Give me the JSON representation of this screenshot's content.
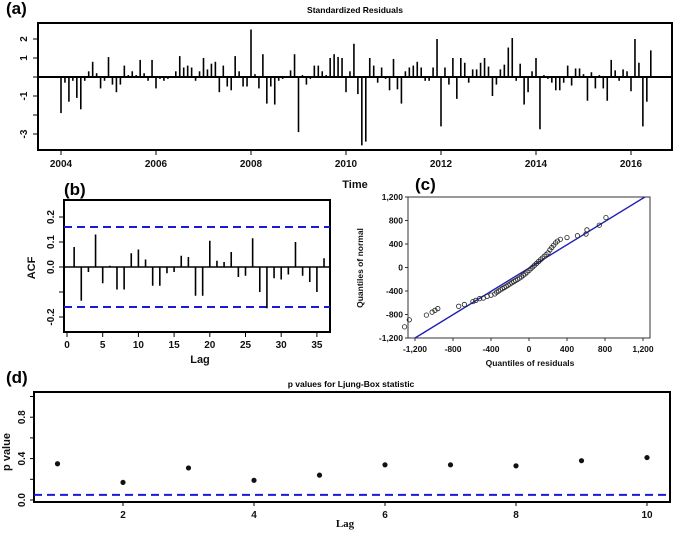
{
  "chart_data": [
    {
      "panel": "(a)",
      "type": "bar",
      "title": "Standardized Residuals",
      "xlabel": "Time",
      "ylabel": "",
      "xlim": [
        2003.5,
        2016.85
      ],
      "ylim": [
        -3.85,
        2.85
      ],
      "x_ticks": [
        "2004",
        "2006",
        "2008",
        "2010",
        "2012",
        "2014",
        "2016"
      ],
      "y_ticks": [
        "2",
        "1",
        "-1",
        "-3"
      ],
      "start": 2004.0,
      "frequency": 12,
      "values": [
        -1.9,
        -0.3,
        -1.3,
        -0.2,
        -1.1,
        -1.7,
        -0.2,
        0.3,
        0.8,
        0.2,
        -0.6,
        -0.2,
        1.05,
        -0.4,
        -0.8,
        -0.4,
        0.6,
        0.1,
        0.3,
        0.1,
        0.9,
        0.2,
        -0.2,
        0.9,
        -0.6,
        -0.1,
        -0.2,
        -0.1,
        0.05,
        0.3,
        1.1,
        0.5,
        0.6,
        0.5,
        -0.2,
        0.3,
        1.0,
        0.4,
        0.7,
        0.8,
        -0.8,
        0.6,
        -0.5,
        -0.7,
        1.1,
        0.3,
        -0.5,
        -0.5,
        2.5,
        0.15,
        -0.6,
        1.2,
        -1.4,
        -0.5,
        -1.45,
        -0.2,
        -0.1,
        0.05,
        0.35,
        1.2,
        -2.9,
        0.1,
        -0.4,
        -0.1,
        0.6,
        0.6,
        0.3,
        0.1,
        1.0,
        1.2,
        1.05,
        1.0,
        -0.8,
        0.3,
        1.75,
        -0.9,
        -3.6,
        -3.4,
        1.0,
        0.6,
        -0.3,
        0.5,
        -0.1,
        -0.7,
        0.95,
        -0.65,
        -1.4,
        0.3,
        0.5,
        0.6,
        0.8,
        0.5,
        -0.2,
        -0.2,
        0.5,
        2.0,
        -2.6,
        0.5,
        -0.4,
        1.0,
        -1.15,
        1.0,
        0.75,
        -0.3,
        0.4,
        0.4,
        0.75,
        1.0,
        0.55,
        -1.0,
        -0.4,
        0.4,
        0.65,
        1.55,
        2.05,
        -0.2,
        0.7,
        -1.45,
        -0.8,
        0.3,
        1.0,
        -2.75,
        0.1,
        -0.1,
        -0.3,
        -0.7,
        -0.7,
        -0.3,
        0.6,
        -0.45,
        0.45,
        0.45,
        0.15,
        -1.25,
        0.25,
        -0.6,
        0.1,
        -0.6,
        -1.25,
        0.9,
        0.35,
        -0.2,
        0.4,
        0.3,
        -0.75,
        2.0,
        0.75,
        -2.6,
        -1.3,
        1.4
      ]
    },
    {
      "panel": "(b)",
      "type": "bar",
      "title": "",
      "xlabel": "Lag",
      "ylabel": "ACF",
      "xlim": [
        -0.5,
        37.3
      ],
      "ylim": [
        -0.26,
        0.27
      ],
      "x_ticks": [
        "0",
        "5",
        "10",
        "15",
        "20",
        "25",
        "30",
        "35"
      ],
      "y_ticks": [
        "0.2",
        "0.1",
        "0.0",
        "-0.2"
      ],
      "confidence_bounds": [
        0.16,
        -0.16
      ],
      "lags": [
        1,
        2,
        3,
        4,
        5,
        6,
        7,
        8,
        9,
        10,
        11,
        12,
        13,
        14,
        15,
        16,
        17,
        18,
        19,
        20,
        21,
        22,
        23,
        24,
        25,
        26,
        27,
        28,
        29,
        30,
        31,
        32,
        33,
        34,
        35,
        36
      ],
      "values": [
        0.08,
        -0.135,
        -0.02,
        0.13,
        -0.065,
        0.005,
        -0.09,
        -0.09,
        0.055,
        0.07,
        0.03,
        -0.075,
        -0.075,
        -0.025,
        -0.02,
        0.045,
        0.04,
        -0.115,
        -0.115,
        0.105,
        0.025,
        0.02,
        0.06,
        -0.04,
        -0.035,
        0.115,
        -0.1,
        -0.165,
        -0.045,
        -0.05,
        -0.03,
        0.1,
        -0.035,
        -0.06,
        -0.1,
        0.035
      ]
    },
    {
      "panel": "(c)",
      "type": "scatter",
      "title": "",
      "xlabel": "Quantiles of residuals",
      "ylabel": "Quantiles of normal",
      "xlim": [
        -1350,
        1300
      ],
      "ylim": [
        -1200,
        1200
      ],
      "x_ticks": [
        "-1,200",
        "-800",
        "-400",
        "0",
        "400",
        "800",
        "1,200"
      ],
      "y_ticks": [
        "1,200",
        "800",
        "400",
        "0",
        "-400",
        "-800",
        "-1,200"
      ],
      "reference_line": {
        "from": [
          -1200,
          -1200
        ],
        "to": [
          1220,
          1200
        ],
        "color": "#1f1fb4"
      },
      "points": [
        [
          -1310,
          -1010
        ],
        [
          -1260,
          -890
        ],
        [
          -1080,
          -810
        ],
        [
          -1020,
          -760
        ],
        [
          -990,
          -730
        ],
        [
          -960,
          -700
        ],
        [
          -740,
          -660
        ],
        [
          -680,
          -630
        ],
        [
          -590,
          -580
        ],
        [
          -560,
          -560
        ],
        [
          -520,
          -530
        ],
        [
          -480,
          -520
        ],
        [
          -440,
          -490
        ],
        [
          -400,
          -470
        ],
        [
          -360,
          -450
        ],
        [
          -340,
          -420
        ],
        [
          -320,
          -400
        ],
        [
          -300,
          -380
        ],
        [
          -280,
          -360
        ],
        [
          -260,
          -340
        ],
        [
          -240,
          -320
        ],
        [
          -220,
          -300
        ],
        [
          -200,
          -280
        ],
        [
          -180,
          -260
        ],
        [
          -160,
          -240
        ],
        [
          -140,
          -220
        ],
        [
          -120,
          -200
        ],
        [
          -100,
          -180
        ],
        [
          -80,
          -160
        ],
        [
          -60,
          -130
        ],
        [
          -40,
          -110
        ],
        [
          -20,
          -80
        ],
        [
          0,
          -50
        ],
        [
          20,
          -20
        ],
        [
          40,
          10
        ],
        [
          60,
          40
        ],
        [
          80,
          70
        ],
        [
          100,
          100
        ],
        [
          120,
          130
        ],
        [
          140,
          160
        ],
        [
          160,
          190
        ],
        [
          180,
          220
        ],
        [
          200,
          250
        ],
        [
          220,
          300
        ],
        [
          240,
          340
        ],
        [
          260,
          380
        ],
        [
          280,
          420
        ],
        [
          300,
          450
        ],
        [
          330,
          480
        ],
        [
          400,
          510
        ],
        [
          510,
          540
        ],
        [
          600,
          570
        ],
        [
          610,
          640
        ],
        [
          740,
          720
        ],
        [
          810,
          850
        ]
      ]
    },
    {
      "panel": "(d)",
      "type": "scatter",
      "title": "p values for Ljung-Box statistic",
      "xlabel": "Lag",
      "ylabel": "p value",
      "xlim": [
        0.6,
        10.35
      ],
      "ylim": [
        -0.02,
        1.02
      ],
      "x_ticks": [
        "2",
        "4",
        "6",
        "8",
        "10"
      ],
      "y_ticks": [
        "0.0",
        "0.4",
        "0.8"
      ],
      "significance_line": 0.05,
      "x": [
        1,
        2,
        3,
        4,
        5,
        6,
        7,
        8,
        9,
        10
      ],
      "values": [
        0.35,
        0.17,
        0.31,
        0.19,
        0.24,
        0.34,
        0.34,
        0.33,
        0.38,
        0.41
      ]
    }
  ],
  "labels": {
    "a": "(a)",
    "b": "(b)",
    "c": "(c)",
    "d": "(d)"
  },
  "colors": {
    "dashed_bound": "#1a1ad6",
    "reference_line": "#1f1fb4",
    "bars": "#000000"
  }
}
